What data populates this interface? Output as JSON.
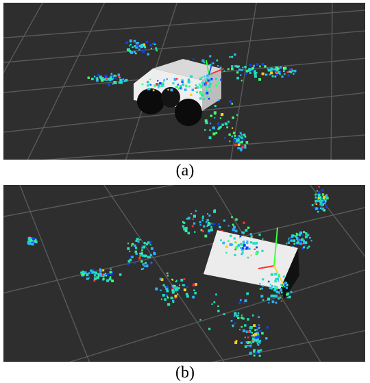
{
  "figure": {
    "panels": [
      {
        "id": "a",
        "caption": "(a)",
        "content": "robot-pointcloud-view"
      },
      {
        "id": "b",
        "caption": "(b)",
        "content": "robot-pointcloud-view"
      }
    ]
  },
  "colors": {
    "background": "#2e2e2e",
    "grid": "#5a5a5a",
    "robot_body": "#e6e6e6",
    "wheel": "#0d0d0d",
    "points": [
      "#20e0c0",
      "#30b0ff",
      "#40ff70",
      "#1040ff",
      "#ff3030",
      "#ffd020"
    ]
  }
}
